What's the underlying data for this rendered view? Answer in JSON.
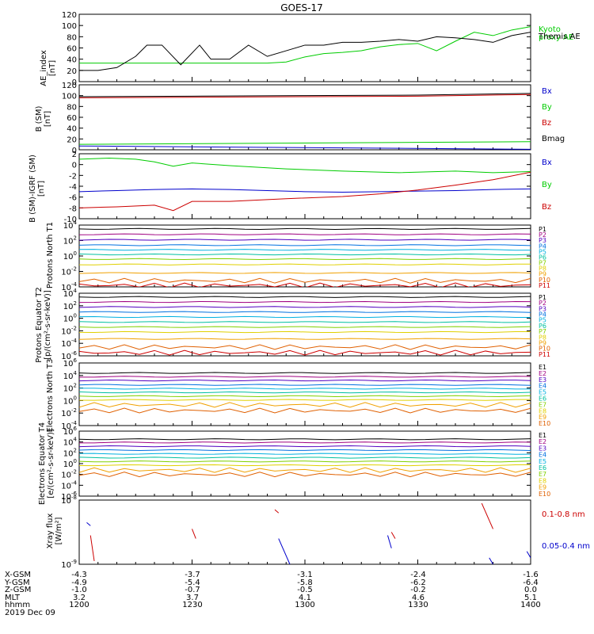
{
  "title": "GOES-17",
  "colors": {
    "black": "#000000",
    "green": "#00cc00",
    "blue": "#0000cc",
    "red": "#cc0000",
    "brightGreen": "#00ee00"
  },
  "ephemeris": {
    "row_labels": [
      "X-GSM",
      "Y-GSM",
      "Z-GSM",
      "MLT",
      "hhmm",
      "2019 Dec 09"
    ],
    "columns": [
      {
        "values": [
          "-4.3",
          "-4.9",
          "-1.0",
          "3.2",
          "1200"
        ]
      },
      {
        "values": [
          "-3.7",
          "-5.4",
          "-0.7",
          "3.7",
          "1230"
        ]
      },
      {
        "values": [
          "-3.1",
          "-5.8",
          "-0.5",
          "4.1",
          "1300"
        ]
      },
      {
        "values": [
          "-2.4",
          "-6.2",
          "-0.2",
          "4.6",
          "1330"
        ]
      },
      {
        "values": [
          "-1.6",
          "-6.4",
          "0.0",
          "5.1",
          "1400"
        ]
      }
    ]
  },
  "chart_data": [
    {
      "type": "line",
      "ylabel": "AE_index [nT]",
      "ylim": [
        0,
        120
      ],
      "yticks": [
        "0",
        "20",
        "40",
        "60",
        "80",
        "100",
        "120"
      ],
      "series": [
        {
          "name": "Kyoto proxy AE",
          "color": "#00cc00",
          "x": [
            0,
            5,
            10,
            15,
            20,
            25,
            30,
            35,
            40,
            45,
            50,
            55,
            60,
            65,
            70,
            75,
            80,
            85,
            90,
            95,
            100,
            105,
            110,
            115,
            120
          ],
          "values": [
            33,
            33,
            33,
            33,
            33,
            33,
            33,
            33,
            33,
            33,
            33,
            35,
            44,
            50,
            52,
            55,
            62,
            66,
            68,
            55,
            72,
            88,
            82,
            92,
            98
          ]
        },
        {
          "name": "Themis AE",
          "color": "#000000",
          "x": [
            0,
            5,
            10,
            15,
            18,
            22,
            27,
            32,
            35,
            40,
            45,
            50,
            55,
            60,
            65,
            70,
            75,
            80,
            85,
            90,
            95,
            100,
            105,
            110,
            115,
            120
          ],
          "values": [
            20,
            20,
            25,
            45,
            65,
            65,
            30,
            65,
            40,
            40,
            65,
            45,
            55,
            65,
            65,
            70,
            70,
            72,
            75,
            72,
            80,
            78,
            75,
            70,
            82,
            88
          ]
        }
      ]
    },
    {
      "type": "line",
      "ylabel": "B (SM) [nT]",
      "ylim": [
        0,
        120
      ],
      "yticks": [
        "0",
        "20",
        "40",
        "60",
        "80",
        "100",
        "120"
      ],
      "series": [
        {
          "name": "Bx",
          "color": "#0000cc",
          "x": [
            0,
            120
          ],
          "values": [
            7,
            1
          ]
        },
        {
          "name": "By",
          "color": "#00cc00",
          "x": [
            0,
            120
          ],
          "values": [
            10,
            15
          ]
        },
        {
          "name": "Bz",
          "color": "#cc0000",
          "x": [
            0,
            30,
            60,
            90,
            120
          ],
          "values": [
            96,
            97,
            98,
            99,
            102
          ]
        },
        {
          "name": "Bmag",
          "color": "#000000",
          "x": [
            0,
            30,
            60,
            90,
            120
          ],
          "values": [
            98,
            99,
            100,
            101,
            104
          ]
        }
      ]
    },
    {
      "type": "line",
      "ylabel": "B (SM)-IGRF (SM) [nT]",
      "ylim": [
        -10,
        2
      ],
      "yticks": [
        "-10",
        "-8",
        "-6",
        "-4",
        "-2",
        "0",
        "2"
      ],
      "series": [
        {
          "name": "Bx",
          "color": "#0000cc",
          "x": [
            0,
            10,
            20,
            30,
            40,
            50,
            60,
            70,
            80,
            90,
            100,
            110,
            120
          ],
          "values": [
            -5,
            -4.8,
            -4.6,
            -4.5,
            -4.6,
            -4.8,
            -5.0,
            -5.1,
            -5.0,
            -4.9,
            -4.8,
            -4.6,
            -4.5
          ]
        },
        {
          "name": "By",
          "color": "#00cc00",
          "x": [
            0,
            8,
            15,
            20,
            25,
            30,
            40,
            55,
            70,
            85,
            100,
            110,
            120
          ],
          "values": [
            1.0,
            1.2,
            1.0,
            0.5,
            -0.3,
            0.3,
            -0.2,
            -0.8,
            -1.2,
            -1.5,
            -1.2,
            -1.5,
            -1.3
          ]
        },
        {
          "name": "Bz",
          "color": "#cc0000",
          "x": [
            0,
            10,
            20,
            25,
            30,
            40,
            55,
            70,
            80,
            90,
            100,
            110,
            120
          ],
          "values": [
            -8,
            -7.8,
            -7.5,
            -8.5,
            -6.8,
            -6.8,
            -6.3,
            -5.9,
            -5.4,
            -4.7,
            -3.8,
            -2.8,
            -1.4
          ]
        }
      ]
    },
    {
      "type": "line",
      "ylabel": "Protons North T1",
      "ylim": [
        -4,
        4
      ],
      "yscale": "log",
      "yticks": [
        "10^-4",
        "10^-2",
        "10^0",
        "10^2",
        "10^4"
      ],
      "series": [
        {
          "name": "P1",
          "values": [
            3.5
          ]
        },
        {
          "name": "P2",
          "values": [
            2.8
          ]
        },
        {
          "name": "P3",
          "values": [
            2.1
          ]
        },
        {
          "name": "P4",
          "values": [
            1.4
          ]
        },
        {
          "name": "P5",
          "values": [
            0.8
          ]
        },
        {
          "name": "P6",
          "values": [
            0.2
          ]
        },
        {
          "name": "P7",
          "values": [
            -0.4
          ]
        },
        {
          "name": "P8",
          "values": [
            -1.1
          ]
        },
        {
          "name": "P9",
          "values": [
            -2.2
          ]
        },
        {
          "name": "P10",
          "values": [
            -3.2
          ]
        },
        {
          "name": "P11",
          "values": [
            -3.8
          ]
        }
      ]
    },
    {
      "type": "line",
      "ylabel": "Protons Equator T2 [p/(cm²-s-sr-keV)]",
      "ylim": [
        -6,
        4
      ],
      "yscale": "log",
      "yticks": [
        "10^-6",
        "10^-4",
        "10^-2",
        "10^0",
        "10^2",
        "10^4"
      ],
      "series": [
        {
          "name": "P1",
          "values": [
            3.4
          ]
        },
        {
          "name": "P2",
          "values": [
            2.6
          ]
        },
        {
          "name": "P3",
          "values": [
            1.8
          ]
        },
        {
          "name": "P4",
          "values": [
            1.0
          ]
        },
        {
          "name": "P5",
          "values": [
            0.2
          ]
        },
        {
          "name": "P6",
          "values": [
            -0.6
          ]
        },
        {
          "name": "P7",
          "values": [
            -1.4
          ]
        },
        {
          "name": "P8",
          "values": [
            -2.2
          ]
        },
        {
          "name": "P9",
          "values": [
            -3.3
          ]
        },
        {
          "name": "P10",
          "values": [
            -4.6
          ]
        },
        {
          "name": "P11",
          "values": [
            -5.5
          ]
        }
      ]
    },
    {
      "type": "line",
      "ylabel": "Electrons North T3",
      "ylim": [
        -4,
        6
      ],
      "yscale": "log",
      "yticks": [
        "10^-4",
        "10^-2",
        "10^0",
        "10^2",
        "10^4",
        "10^6"
      ],
      "series": [
        {
          "name": "E1",
          "values": [
            4.4
          ]
        },
        {
          "name": "E2",
          "values": [
            3.8
          ]
        },
        {
          "name": "E3",
          "values": [
            3.2
          ]
        },
        {
          "name": "E4",
          "values": [
            2.5
          ]
        },
        {
          "name": "E5",
          "values": [
            1.9
          ]
        },
        {
          "name": "E6",
          "values": [
            1.3
          ]
        },
        {
          "name": "E7",
          "values": [
            0.7
          ]
        },
        {
          "name": "E8",
          "values": [
            0.1
          ]
        },
        {
          "name": "E9",
          "values": [
            -0.7
          ]
        },
        {
          "name": "E10",
          "values": [
            -1.6
          ]
        }
      ]
    },
    {
      "type": "line",
      "ylabel": "Electrons Equator T4 [e/(cm²-s-sr-keV)]",
      "ylim": [
        -6,
        6
      ],
      "yscale": "log",
      "yticks": [
        "10^-6",
        "10^-4",
        "10^-2",
        "10^0",
        "10^2",
        "10^4",
        "10^6"
      ],
      "series": [
        {
          "name": "E1",
          "values": [
            4.5
          ]
        },
        {
          "name": "E2",
          "values": [
            3.9
          ]
        },
        {
          "name": "E3",
          "values": [
            3.2
          ]
        },
        {
          "name": "E4",
          "values": [
            2.5
          ]
        },
        {
          "name": "E5",
          "values": [
            1.8
          ]
        },
        {
          "name": "E6",
          "values": [
            1.1
          ]
        },
        {
          "name": "E7",
          "values": [
            0.4
          ]
        },
        {
          "name": "E8",
          "values": [
            -0.3
          ]
        },
        {
          "name": "E9",
          "values": [
            -1.2
          ]
        },
        {
          "name": "E10",
          "values": [
            -2.0
          ]
        }
      ]
    },
    {
      "type": "line",
      "ylabel": "Xray flux [W/m²]",
      "ylim": [
        -9,
        -8
      ],
      "yscale": "log",
      "yticks": [
        "10^-9",
        "10^-8"
      ],
      "series": [
        {
          "name": "0.1-0.8 nm",
          "color": "#cc0000"
        },
        {
          "name": "0.05-0.4 nm",
          "color": "#0000cc"
        }
      ]
    }
  ]
}
